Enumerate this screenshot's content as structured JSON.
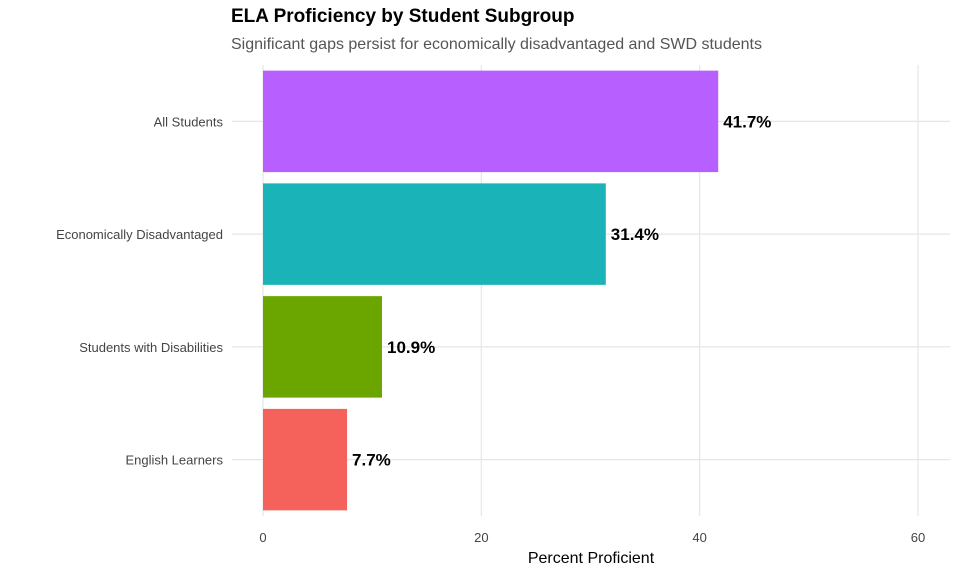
{
  "chart_data": {
    "type": "bar",
    "orientation": "horizontal",
    "title": "ELA Proficiency by Student Subgroup",
    "subtitle": "Significant gaps persist for economically disadvantaged and SWD students",
    "xlabel": "Percent Proficient",
    "ylabel": "",
    "categories": [
      "All Students",
      "Economically Disadvantaged",
      "Students with Disabilities",
      "English Learners"
    ],
    "values": [
      41.7,
      31.4,
      10.9,
      7.7
    ],
    "data_labels": [
      "41.7%",
      "31.4%",
      "10.9%",
      "7.7%"
    ],
    "colors": [
      "#B75FFF",
      "#1AB3B8",
      "#6BA600",
      "#F4625B"
    ],
    "xlim": [
      0,
      63
    ],
    "xticks": [
      0,
      20,
      40,
      60
    ],
    "xtick_labels": [
      "0",
      "20",
      "40",
      "60"
    ],
    "grid": true,
    "legend": "none"
  }
}
